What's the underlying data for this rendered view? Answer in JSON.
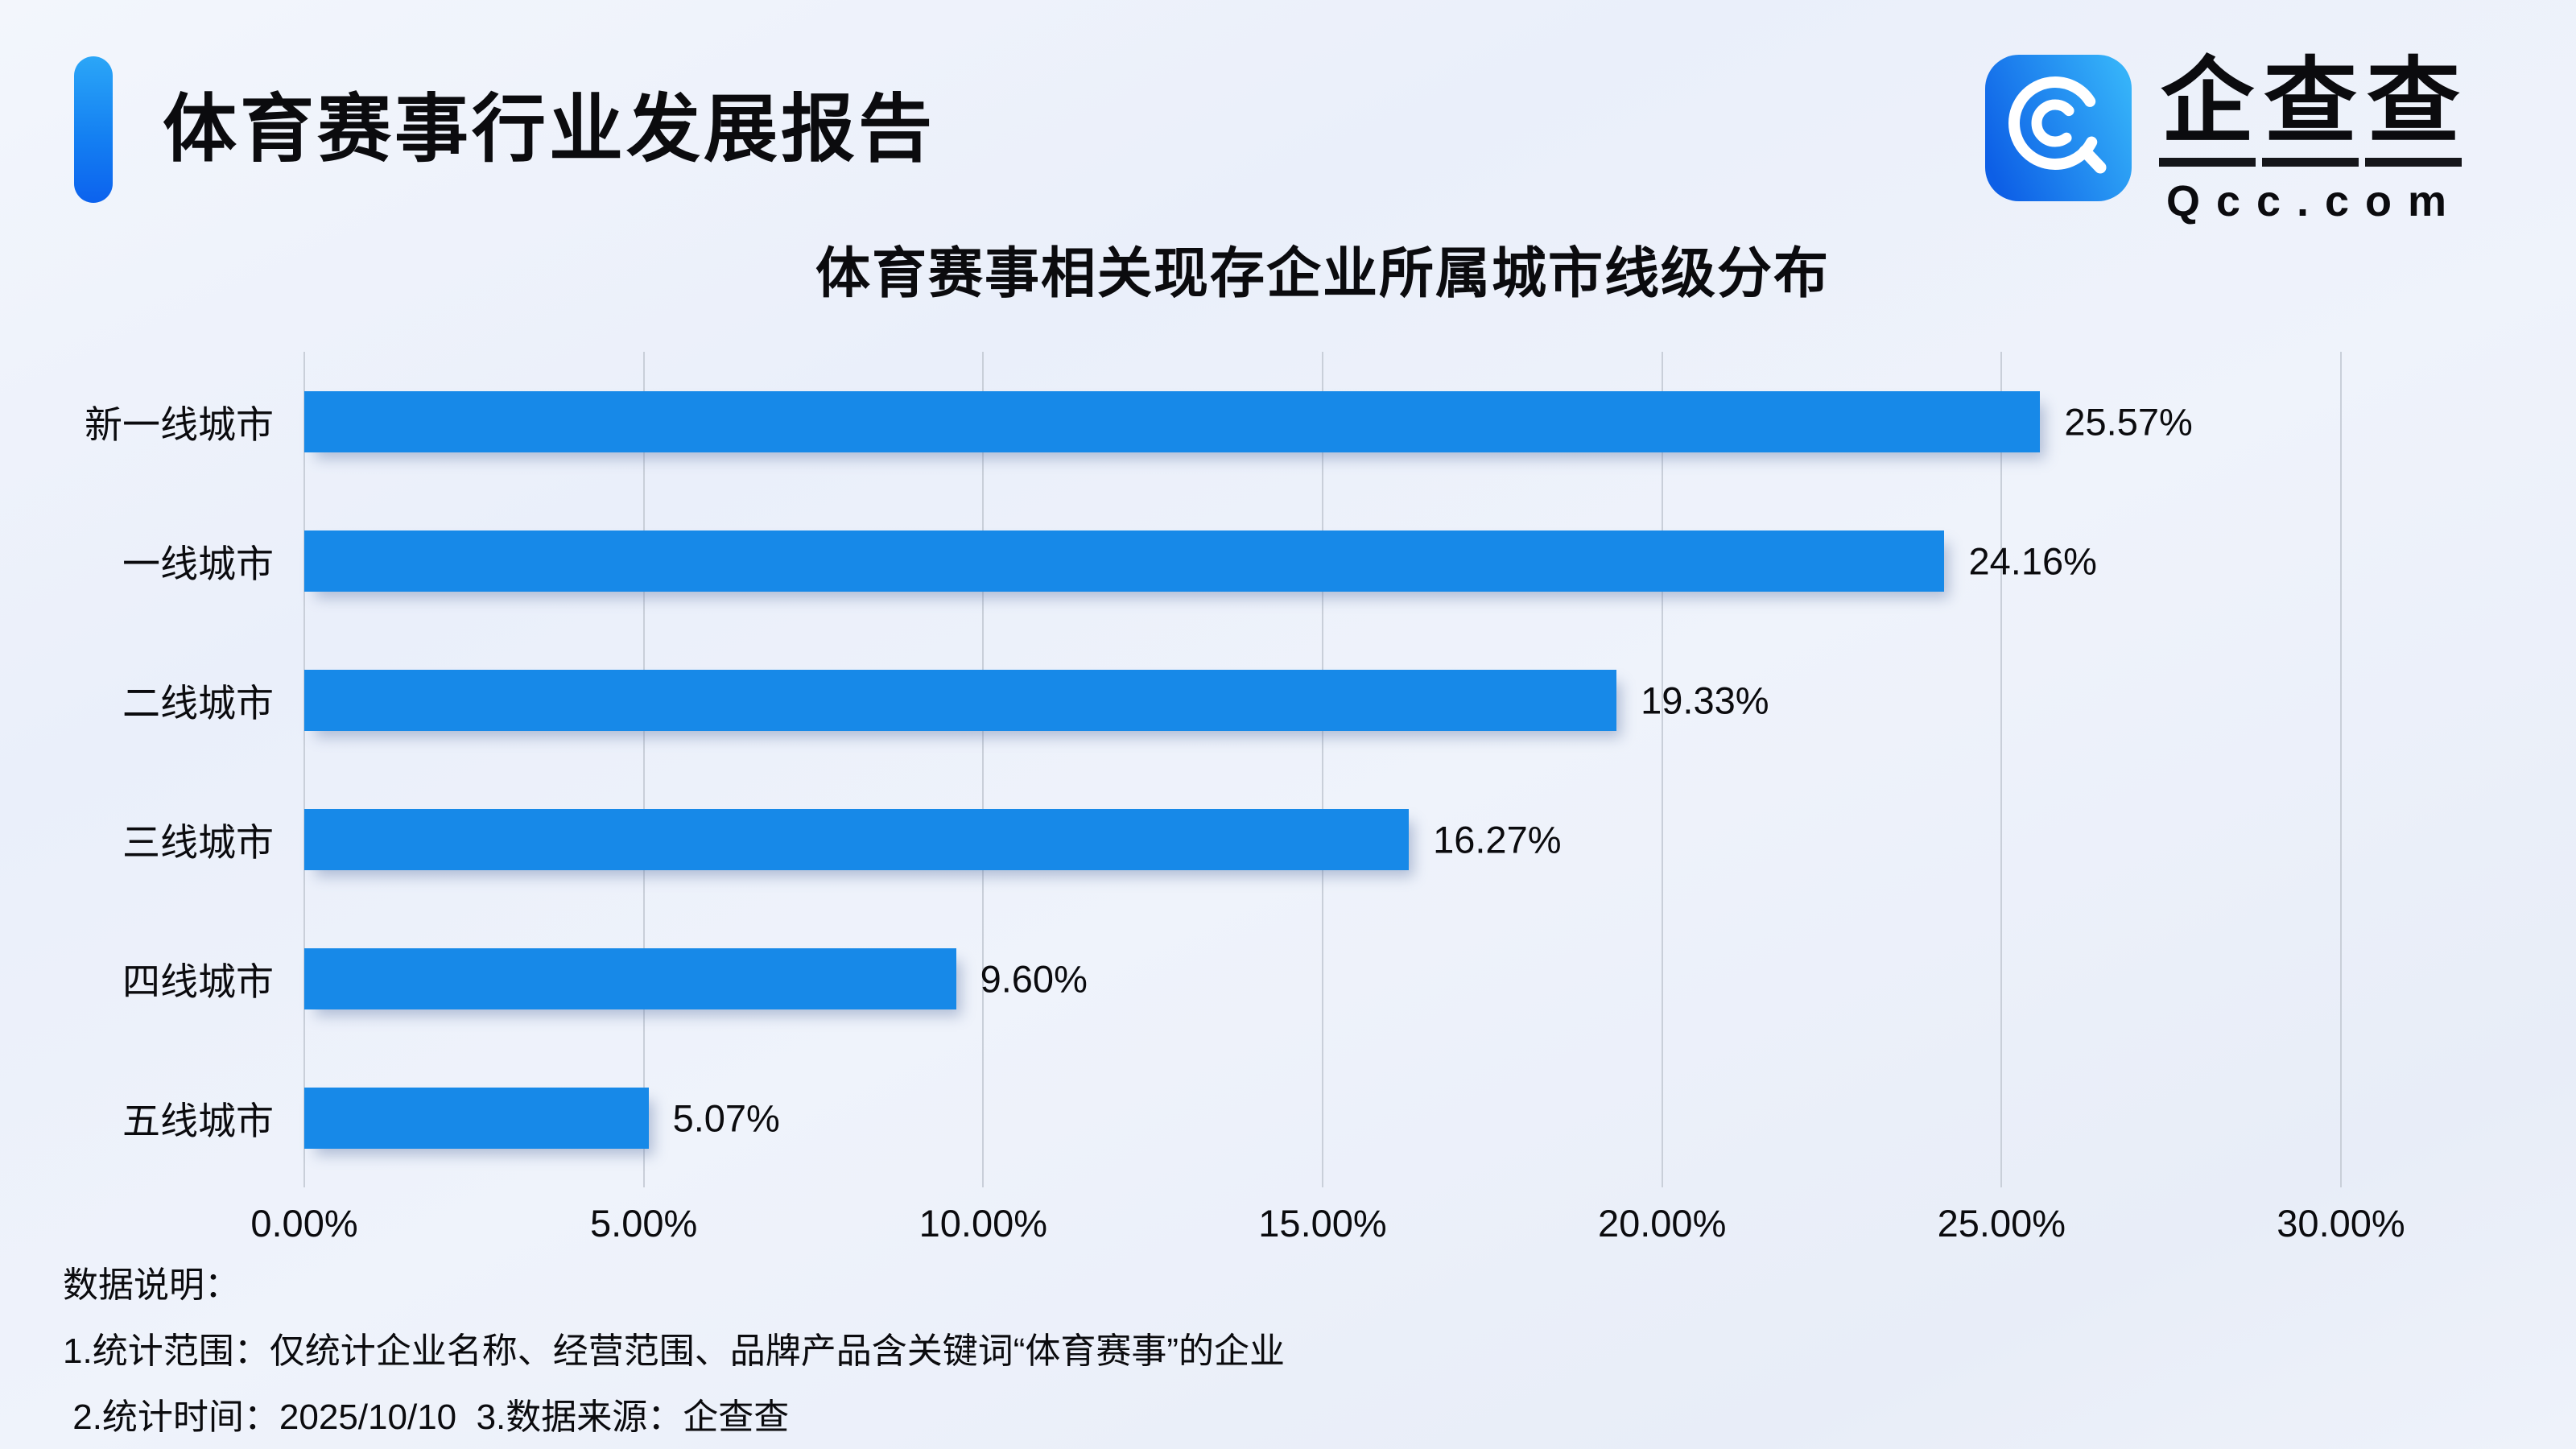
{
  "header": {
    "report_title": "体育赛事行业发展报告"
  },
  "logo": {
    "brand_chars": [
      "企",
      "查",
      "查"
    ],
    "domain": "Qcc.com"
  },
  "chart_data": {
    "type": "bar",
    "orientation": "horizontal",
    "title": "体育赛事相关现存企业所属城市线级分布",
    "categories": [
      "新一线城市",
      "一线城市",
      "二线城市",
      "三线城市",
      "四线城市",
      "五线城市"
    ],
    "values": [
      25.57,
      24.16,
      19.33,
      16.27,
      9.6,
      5.07
    ],
    "value_labels": [
      "25.57%",
      "24.16%",
      "19.33%",
      "16.27%",
      "9.60%",
      "5.07%"
    ],
    "xlim": [
      0,
      30
    ],
    "x_ticks": [
      0,
      5,
      10,
      15,
      20,
      25,
      30
    ],
    "x_tick_labels": [
      "0.00%",
      "5.00%",
      "10.00%",
      "15.00%",
      "20.00%",
      "25.00%",
      "30.00%"
    ],
    "grid": "vertical",
    "legend": "none",
    "bar_color": "#1789e8"
  },
  "notes": {
    "heading": "数据说明：",
    "line1": "1.统计范围：仅统计企业名称、经营范围、品牌产品含关键词“体育赛事”的企业",
    "line2": " 2.统计时间：2025/10/10  3.数据来源：企查查"
  },
  "colors": {
    "bar": "#1789e8",
    "accent_top": "#2ba6f7",
    "accent_bottom": "#0c62ee",
    "gridline": "#c9cfd9",
    "background": "#edf1fa",
    "text": "#0b0b0e"
  }
}
